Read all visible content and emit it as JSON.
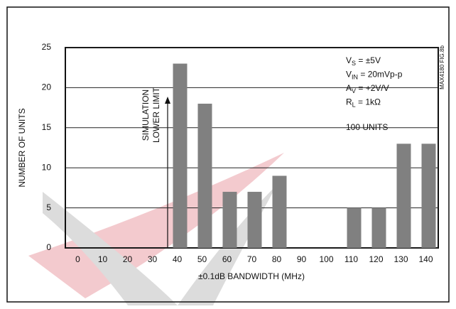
{
  "chart_data": {
    "type": "bar",
    "xlabel": "±0.1dB BANDWIDTH (MHz)",
    "ylabel": "NUMBER OF UNITS",
    "categories": [
      "0",
      "10",
      "20",
      "30",
      "40",
      "50",
      "60",
      "70",
      "80",
      "90",
      "100",
      "110",
      "120",
      "130",
      "140"
    ],
    "values": [
      0,
      0,
      0,
      0,
      23,
      18,
      7,
      7,
      9,
      0,
      0,
      5,
      5,
      13,
      13
    ],
    "color": "#808080",
    "ylim": [
      0,
      25
    ],
    "yticks": [
      0,
      5,
      10,
      15,
      20,
      25
    ],
    "grid": true,
    "annotations": [
      "SIMULATION",
      "LOWER LIMIT",
      "100 UNITS"
    ],
    "conditions": [
      {
        "main": "V",
        "sub": "S",
        "rest": " = ±5V"
      },
      {
        "main": "V",
        "sub": "IN",
        "rest": " = 20mVp-p"
      },
      {
        "main": "A",
        "sub": "V",
        "rest": " = +2V/V"
      },
      {
        "main": "R",
        "sub": "L",
        "rest": " = 1kΩ"
      }
    ],
    "figure_id": "MAX4180 FIG.8b"
  }
}
